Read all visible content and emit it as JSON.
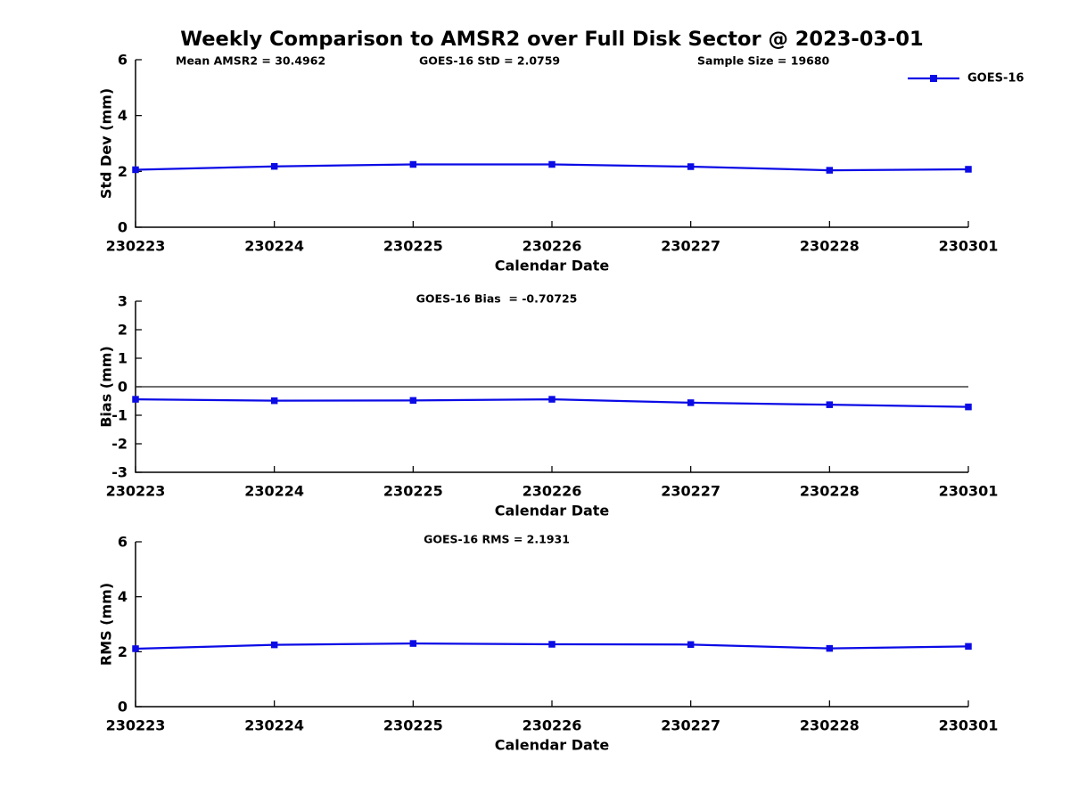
{
  "title": "Weekly Comparison to AMSR2 over Full Disk Sector @ 2023-03-01",
  "legend": {
    "label": "GOES-16",
    "position": "top-right"
  },
  "colors": {
    "series": "#0b0be6",
    "axis": "#000000",
    "zero_line": "#1a1a1a",
    "text": "#000000",
    "background": "#ffffff"
  },
  "chart_data": [
    {
      "type": "line",
      "name": "std-dev-subplot",
      "annotations": [
        "Mean AMSR2 = 30.4962",
        "GOES-16 StD = 2.0759",
        "Sample Size = 19680"
      ],
      "categories": [
        "230223",
        "230224",
        "230225",
        "230226",
        "230227",
        "230228",
        "230301"
      ],
      "series": [
        {
          "name": "GOES-16",
          "values": [
            2.06,
            2.18,
            2.25,
            2.25,
            2.17,
            2.04,
            2.0759
          ]
        }
      ],
      "xlabel": "Calendar Date",
      "ylabel": "Std Dev (mm)",
      "ylim": [
        0,
        6
      ],
      "yticks": [
        0,
        2,
        4,
        6
      ],
      "zero_line": false,
      "show_legend": true,
      "grid": false,
      "marker": "square"
    },
    {
      "type": "line",
      "name": "bias-subplot",
      "annotations": [
        "GOES-16 Bias  = -0.70725"
      ],
      "categories": [
        "230223",
        "230224",
        "230225",
        "230226",
        "230227",
        "230228",
        "230301"
      ],
      "series": [
        {
          "name": "GOES-16",
          "values": [
            -0.44,
            -0.49,
            -0.48,
            -0.44,
            -0.56,
            -0.63,
            -0.70725
          ]
        }
      ],
      "xlabel": "Calendar Date",
      "ylabel": "Bias (mm)",
      "ylim": [
        -3,
        3
      ],
      "yticks": [
        -3,
        -2,
        -1,
        0,
        1,
        2,
        3
      ],
      "zero_line": true,
      "show_legend": false,
      "grid": false,
      "marker": "square"
    },
    {
      "type": "line",
      "name": "rms-subplot",
      "annotations": [
        "GOES-16 RMS = 2.1931"
      ],
      "categories": [
        "230223",
        "230224",
        "230225",
        "230226",
        "230227",
        "230228",
        "230301"
      ],
      "series": [
        {
          "name": "GOES-16",
          "values": [
            2.11,
            2.25,
            2.3,
            2.27,
            2.26,
            2.12,
            2.1931
          ]
        }
      ],
      "xlabel": "Calendar Date",
      "ylabel": "RMS (mm)",
      "ylim": [
        0,
        6
      ],
      "yticks": [
        0,
        2,
        4,
        6
      ],
      "zero_line": false,
      "show_legend": false,
      "grid": false,
      "marker": "square"
    }
  ]
}
